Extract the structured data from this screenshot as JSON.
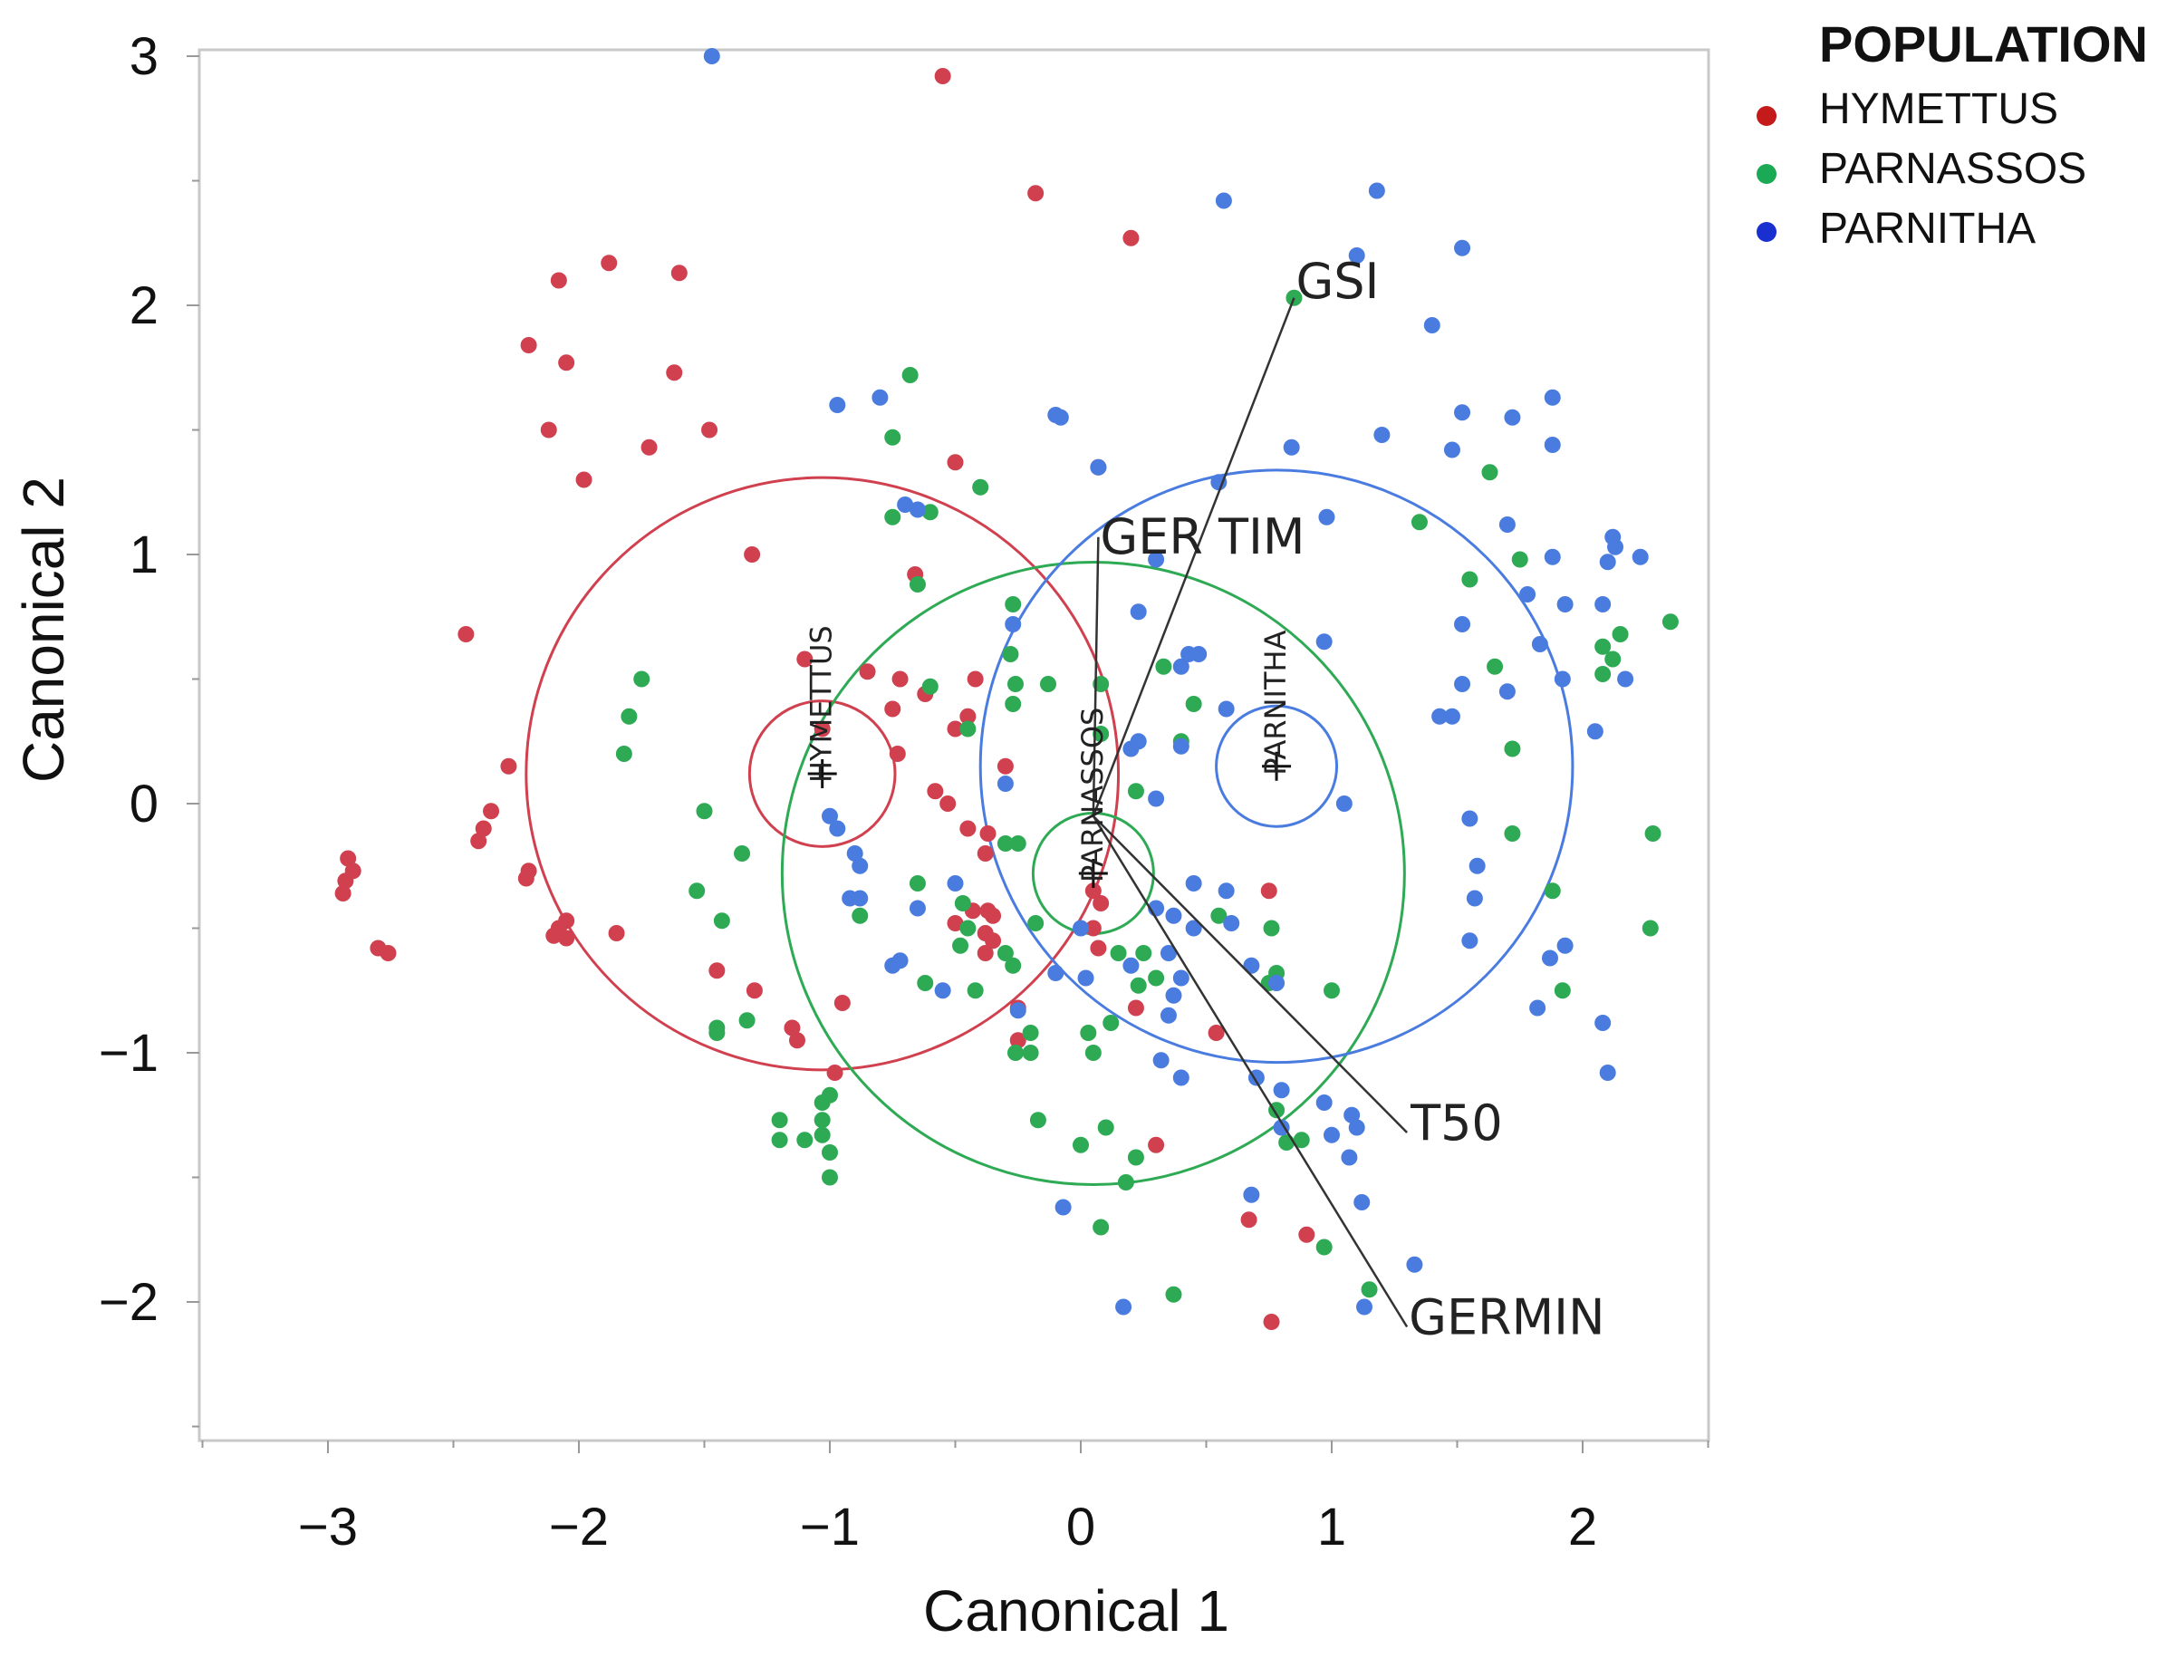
{
  "chart_data": {
    "type": "scatter",
    "xlabel": "Canonical 1",
    "ylabel": "Canonical 2",
    "xlim": [
      -3.5,
      2.5
    ],
    "ylim": [
      -2.5,
      3.1
    ],
    "xticks": [
      -3,
      -2,
      -1,
      0,
      1,
      2
    ],
    "yticks": [
      -2,
      -1,
      0,
      1,
      2,
      3
    ],
    "xtick_labels": [
      "−3",
      "−2",
      "−1",
      "0",
      "1",
      "2"
    ],
    "ytick_labels": [
      "−2",
      "−1",
      "0",
      "1",
      "2",
      "3"
    ],
    "legend": {
      "title": "POPULATION",
      "position": "top-right"
    },
    "series": [
      {
        "name": "HYMETTUS",
        "color": "#d0404f",
        "centroid": [
          -1.03,
          0.12
        ],
        "inner_radius": 0.29,
        "outer_radius": 1.18,
        "points": [
          [
            -0.55,
            2.92
          ],
          [
            -0.18,
            2.45
          ],
          [
            0.2,
            2.27
          ],
          [
            -1.88,
            2.17
          ],
          [
            -2.08,
            2.1
          ],
          [
            -1.6,
            2.13
          ],
          [
            -2.2,
            1.84
          ],
          [
            -2.05,
            1.77
          ],
          [
            -1.62,
            1.73
          ],
          [
            -2.12,
            1.5
          ],
          [
            -1.72,
            1.43
          ],
          [
            -1.48,
            1.5
          ],
          [
            -1.98,
            1.3
          ],
          [
            -0.5,
            1.37
          ],
          [
            0.07,
            1.35
          ],
          [
            -1.31,
            1.0
          ],
          [
            -0.66,
            0.92
          ],
          [
            -1.1,
            0.58
          ],
          [
            -2.45,
            0.68
          ],
          [
            -0.85,
            0.53
          ],
          [
            -0.72,
            0.5
          ],
          [
            -0.42,
            0.5
          ],
          [
            -0.62,
            0.44
          ],
          [
            -0.5,
            0.3
          ],
          [
            -0.45,
            0.35
          ],
          [
            -1.03,
            0.3
          ],
          [
            -0.75,
            0.38
          ],
          [
            -0.73,
            0.2
          ],
          [
            -0.3,
            0.15
          ],
          [
            -2.28,
            0.15
          ],
          [
            -0.58,
            0.05
          ],
          [
            -0.53,
            0.0
          ],
          [
            -0.45,
            -0.1
          ],
          [
            -0.37,
            -0.12
          ],
          [
            -2.35,
            -0.03
          ],
          [
            -2.38,
            -0.1
          ],
          [
            -2.4,
            -0.15
          ],
          [
            -0.38,
            -0.2
          ],
          [
            -2.92,
            -0.22
          ],
          [
            -2.9,
            -0.27
          ],
          [
            -2.93,
            -0.31
          ],
          [
            -2.94,
            -0.36
          ],
          [
            -2.2,
            -0.27
          ],
          [
            -2.21,
            -0.3
          ],
          [
            -0.43,
            -0.43
          ],
          [
            -0.37,
            -0.43
          ],
          [
            -0.35,
            -0.45
          ],
          [
            -0.5,
            -0.48
          ],
          [
            -2.08,
            -0.5
          ],
          [
            -2.05,
            -0.47
          ],
          [
            -2.1,
            -0.53
          ],
          [
            -2.05,
            -0.54
          ],
          [
            -1.85,
            -0.52
          ],
          [
            -0.38,
            -0.52
          ],
          [
            -0.35,
            -0.55
          ],
          [
            -0.38,
            -0.6
          ],
          [
            -2.8,
            -0.58
          ],
          [
            -2.76,
            -0.6
          ],
          [
            -1.45,
            -0.67
          ],
          [
            -1.3,
            -0.75
          ],
          [
            -0.95,
            -0.8
          ],
          [
            -0.25,
            -0.82
          ],
          [
            -1.15,
            -0.9
          ],
          [
            -1.13,
            -0.95
          ],
          [
            -0.25,
            -0.95
          ],
          [
            -0.98,
            -1.08
          ],
          [
            0.05,
            -0.35
          ],
          [
            0.08,
            -0.4
          ],
          [
            0.05,
            -0.5
          ],
          [
            0.07,
            -0.58
          ],
          [
            0.22,
            -0.82
          ],
          [
            0.54,
            -0.92
          ],
          [
            0.75,
            -0.35
          ],
          [
            0.3,
            -1.37
          ],
          [
            0.67,
            -1.67
          ],
          [
            0.9,
            -1.73
          ],
          [
            0.76,
            -2.08
          ]
        ]
      },
      {
        "name": "PARNASSOS",
        "color": "#2eaa55",
        "centroid": [
          0.05,
          -0.28
        ],
        "inner_radius": 0.24,
        "outer_radius": 1.24,
        "points": [
          [
            0.85,
            2.03
          ],
          [
            -0.68,
            1.72
          ],
          [
            -0.75,
            1.47
          ],
          [
            -0.4,
            1.27
          ],
          [
            -0.75,
            1.15
          ],
          [
            -0.6,
            1.17
          ],
          [
            -0.65,
            0.88
          ],
          [
            -0.27,
            0.8
          ],
          [
            -1.75,
            0.5
          ],
          [
            -1.8,
            0.35
          ],
          [
            -1.82,
            0.2
          ],
          [
            -0.28,
            0.6
          ],
          [
            -0.26,
            0.48
          ],
          [
            0.33,
            0.55
          ],
          [
            -0.27,
            0.4
          ],
          [
            -0.6,
            0.47
          ],
          [
            -0.45,
            0.3
          ],
          [
            -0.13,
            0.48
          ],
          [
            0.08,
            0.48
          ],
          [
            0.45,
            0.4
          ],
          [
            0.08,
            0.28
          ],
          [
            0.4,
            0.25
          ],
          [
            0.22,
            0.05
          ],
          [
            -1.5,
            -0.03
          ],
          [
            -0.3,
            -0.16
          ],
          [
            -0.25,
            -0.16
          ],
          [
            -0.65,
            -0.32
          ],
          [
            -1.35,
            -0.2
          ],
          [
            -1.53,
            -0.35
          ],
          [
            -0.88,
            -0.45
          ],
          [
            -0.47,
            -0.4
          ],
          [
            -0.45,
            -0.5
          ],
          [
            -0.18,
            -0.48
          ],
          [
            -1.43,
            -0.47
          ],
          [
            -0.48,
            -0.57
          ],
          [
            -0.3,
            -0.6
          ],
          [
            -0.27,
            -0.65
          ],
          [
            0.15,
            -0.6
          ],
          [
            0.25,
            -0.6
          ],
          [
            0.55,
            -0.45
          ],
          [
            -0.62,
            -0.72
          ],
          [
            -0.42,
            -0.75
          ],
          [
            0.3,
            -0.7
          ],
          [
            0.23,
            -0.73
          ],
          [
            0.76,
            -0.5
          ],
          [
            0.78,
            -0.68
          ],
          [
            0.75,
            -0.72
          ],
          [
            1.0,
            -0.75
          ],
          [
            -1.45,
            -0.92
          ],
          [
            -1.45,
            -0.9
          ],
          [
            -1.33,
            -0.87
          ],
          [
            -0.2,
            -0.92
          ],
          [
            0.12,
            -0.88
          ],
          [
            -0.26,
            -1.0
          ],
          [
            -0.2,
            -1.0
          ],
          [
            0.03,
            -0.92
          ],
          [
            0.05,
            -1.0
          ],
          [
            -1.03,
            -1.2
          ],
          [
            -1.0,
            -1.17
          ],
          [
            -1.2,
            -1.27
          ],
          [
            -1.03,
            -1.27
          ],
          [
            -1.2,
            -1.35
          ],
          [
            -1.1,
            -1.35
          ],
          [
            -1.03,
            -1.33
          ],
          [
            -1.0,
            -1.4
          ],
          [
            -1.0,
            -1.5
          ],
          [
            -0.17,
            -1.27
          ],
          [
            0.1,
            -1.3
          ],
          [
            0.0,
            -1.37
          ],
          [
            0.22,
            -1.42
          ],
          [
            0.78,
            -1.23
          ],
          [
            0.88,
            -1.35
          ],
          [
            0.82,
            -1.36
          ],
          [
            0.18,
            -1.52
          ],
          [
            0.08,
            -1.7
          ],
          [
            0.97,
            -1.78
          ],
          [
            0.37,
            -1.97
          ],
          [
            1.15,
            -1.95
          ],
          [
            1.35,
            1.13
          ],
          [
            1.63,
            1.33
          ],
          [
            1.75,
            0.98
          ],
          [
            1.55,
            0.9
          ],
          [
            1.65,
            0.55
          ],
          [
            1.72,
            0.22
          ],
          [
            2.08,
            0.63
          ],
          [
            2.12,
            0.58
          ],
          [
            2.08,
            0.52
          ],
          [
            2.15,
            0.68
          ],
          [
            2.35,
            0.73
          ],
          [
            1.88,
            -0.35
          ],
          [
            2.28,
            -0.12
          ],
          [
            1.72,
            -0.12
          ],
          [
            1.92,
            -0.75
          ],
          [
            2.27,
            -0.5
          ]
        ]
      },
      {
        "name": "PARNITHA",
        "color": "#4a7ce0",
        "centroid": [
          0.78,
          0.15
        ],
        "inner_radius": 0.24,
        "outer_radius": 1.18,
        "points": [
          [
            -1.47,
            3.0
          ],
          [
            1.18,
            2.46
          ],
          [
            0.57,
            2.42
          ],
          [
            1.52,
            2.23
          ],
          [
            1.1,
            2.2
          ],
          [
            1.4,
            1.92
          ],
          [
            -0.97,
            1.6
          ],
          [
            -0.8,
            1.63
          ],
          [
            -0.1,
            1.56
          ],
          [
            -0.08,
            1.55
          ],
          [
            1.88,
            1.63
          ],
          [
            1.52,
            1.57
          ],
          [
            1.2,
            1.48
          ],
          [
            1.48,
            1.42
          ],
          [
            1.88,
            1.44
          ],
          [
            1.72,
            1.55
          ],
          [
            0.84,
            1.43
          ],
          [
            0.07,
            1.35
          ],
          [
            0.55,
            1.29
          ],
          [
            0.98,
            1.15
          ],
          [
            1.7,
            1.12
          ],
          [
            2.12,
            1.07
          ],
          [
            2.13,
            1.03
          ],
          [
            2.23,
            0.99
          ],
          [
            2.1,
            0.97
          ],
          [
            1.88,
            0.99
          ],
          [
            1.78,
            0.84
          ],
          [
            1.93,
            0.8
          ],
          [
            2.08,
            0.8
          ],
          [
            1.83,
            0.64
          ],
          [
            1.52,
            0.72
          ],
          [
            0.97,
            0.65
          ],
          [
            -0.7,
            1.2
          ],
          [
            -0.65,
            1.18
          ],
          [
            0.3,
            0.98
          ],
          [
            -0.27,
            0.72
          ],
          [
            0.23,
            0.77
          ],
          [
            0.4,
            0.55
          ],
          [
            0.43,
            0.6
          ],
          [
            0.47,
            0.6
          ],
          [
            1.92,
            0.5
          ],
          [
            2.17,
            0.5
          ],
          [
            1.52,
            0.48
          ],
          [
            1.7,
            0.45
          ],
          [
            2.05,
            0.29
          ],
          [
            1.43,
            0.35
          ],
          [
            1.48,
            0.35
          ],
          [
            0.23,
            0.25
          ],
          [
            0.4,
            0.23
          ],
          [
            0.2,
            0.22
          ],
          [
            0.58,
            0.38
          ],
          [
            -0.3,
            0.08
          ],
          [
            1.05,
            0.0
          ],
          [
            0.3,
            0.02
          ],
          [
            1.55,
            -0.06
          ],
          [
            -1.0,
            -0.05
          ],
          [
            -0.97,
            -0.1
          ],
          [
            -0.9,
            -0.2
          ],
          [
            -0.88,
            -0.25
          ],
          [
            -0.92,
            -0.38
          ],
          [
            -0.88,
            -0.38
          ],
          [
            -0.5,
            -0.32
          ],
          [
            -0.65,
            -0.42
          ],
          [
            0.45,
            -0.32
          ],
          [
            0.3,
            -0.42
          ],
          [
            0.58,
            -0.35
          ],
          [
            0.6,
            -0.48
          ],
          [
            0.37,
            -0.45
          ],
          [
            0.45,
            -0.5
          ],
          [
            1.58,
            -0.25
          ],
          [
            1.57,
            -0.38
          ],
          [
            1.55,
            -0.55
          ],
          [
            1.87,
            -0.62
          ],
          [
            1.93,
            -0.57
          ],
          [
            1.82,
            -0.82
          ],
          [
            2.08,
            -0.88
          ],
          [
            2.1,
            -1.08
          ],
          [
            -0.75,
            -0.65
          ],
          [
            -0.72,
            -0.63
          ],
          [
            -0.55,
            -0.75
          ],
          [
            0.0,
            -0.5
          ],
          [
            0.2,
            -0.65
          ],
          [
            0.35,
            -0.6
          ],
          [
            0.4,
            -0.7
          ],
          [
            0.68,
            -0.65
          ],
          [
            0.78,
            -0.72
          ],
          [
            -0.1,
            -0.68
          ],
          [
            0.02,
            -0.7
          ],
          [
            -0.25,
            -0.83
          ],
          [
            0.37,
            -0.77
          ],
          [
            0.35,
            -0.85
          ],
          [
            0.32,
            -1.03
          ],
          [
            0.4,
            -1.1
          ],
          [
            0.7,
            -1.1
          ],
          [
            0.8,
            -1.15
          ],
          [
            0.97,
            -1.2
          ],
          [
            1.08,
            -1.25
          ],
          [
            1.1,
            -1.3
          ],
          [
            1.0,
            -1.33
          ],
          [
            1.07,
            -1.42
          ],
          [
            0.8,
            -1.3
          ],
          [
            0.68,
            -1.57
          ],
          [
            -0.07,
            -1.62
          ],
          [
            1.12,
            -1.6
          ],
          [
            1.33,
            -1.85
          ],
          [
            0.17,
            -2.02
          ],
          [
            1.13,
            -2.02
          ]
        ]
      }
    ],
    "vectors": [
      {
        "label": "GSI",
        "from": [
          0.05,
          -0.05
        ],
        "to": [
          0.85,
          2.03
        ]
      },
      {
        "label": "GER TIM",
        "from": [
          0.05,
          -0.05
        ],
        "to": [
          0.07,
          1.07
        ]
      },
      {
        "label": "T50",
        "from": [
          0.05,
          -0.05
        ],
        "to": [
          1.3,
          -1.32
        ]
      },
      {
        "label": "GERMIN",
        "from": [
          0.05,
          -0.05
        ],
        "to": [
          1.3,
          -2.1
        ]
      }
    ]
  }
}
